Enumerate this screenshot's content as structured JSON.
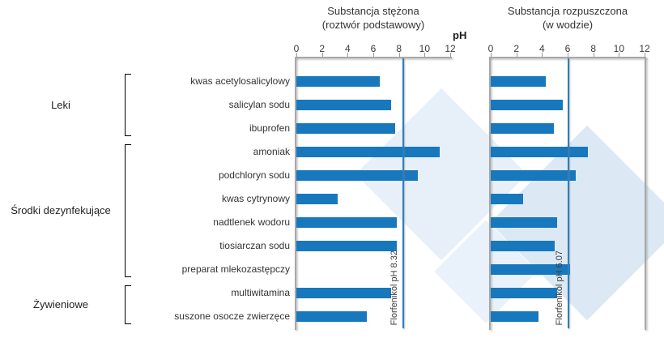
{
  "header": {
    "ph_label": "pH"
  },
  "groups": [
    {
      "label": "Leki",
      "start": 0,
      "end": 2
    },
    {
      "label": "Środki dezynfekujące",
      "start": 3,
      "end": 8
    },
    {
      "label": "Żywieniowe",
      "start": 9,
      "end": 10
    }
  ],
  "chart_data": [
    {
      "type": "bar",
      "orientation": "horizontal",
      "title": "Substancja stężona\n(roztwór podstawowy)",
      "xlabel": "pH",
      "xlim": [
        0,
        12
      ],
      "xticks": [
        0,
        2,
        4,
        6,
        8,
        10,
        12
      ],
      "categories": [
        "kwas acetylosalicylowy",
        "salicylan sodu",
        "ibuprofen",
        "amoniak",
        "podchloryn sodu",
        "kwas cytrynowy",
        "nadtlenek wodoru",
        "tiosiarczan sodu",
        "preparat mlekozastępczy",
        "multiwitamina",
        "suszone osocze zwierzęce"
      ],
      "values": [
        6.5,
        7.4,
        7.7,
        11.2,
        9.5,
        3.2,
        7.8,
        7.8,
        null,
        7.4,
        5.5
      ],
      "reference_line": {
        "label": "Florfenikol pH 8.32",
        "value": 8.32
      }
    },
    {
      "type": "bar",
      "orientation": "horizontal",
      "title": "Substancja rozpuszczona\n(w wodzie)",
      "xlabel": "pH",
      "xlim": [
        0,
        12
      ],
      "xticks": [
        0,
        2,
        4,
        6,
        8,
        10,
        12
      ],
      "categories": [
        "kwas acetylosalicylowy",
        "salicylan sodu",
        "ibuprofen",
        "amoniak",
        "podchloryn sodu",
        "kwas cytrynowy",
        "nadtlenek wodoru",
        "tiosiarczan sodu",
        "preparat mlekozastępczy",
        "multiwitamina",
        "suszone osocze zwierzęce"
      ],
      "values": [
        4.3,
        5.6,
        4.9,
        7.6,
        6.6,
        2.5,
        5.2,
        5.0,
        6.2,
        5.2,
        3.7
      ],
      "reference_line": {
        "label": "Florfenikol pH 6.07",
        "value": 6.07
      }
    }
  ],
  "colors": {
    "bar": "#1878be",
    "reference_line": "#2a7fc1",
    "axis": "#a8a8a8",
    "watermark": "#dce9f5"
  }
}
